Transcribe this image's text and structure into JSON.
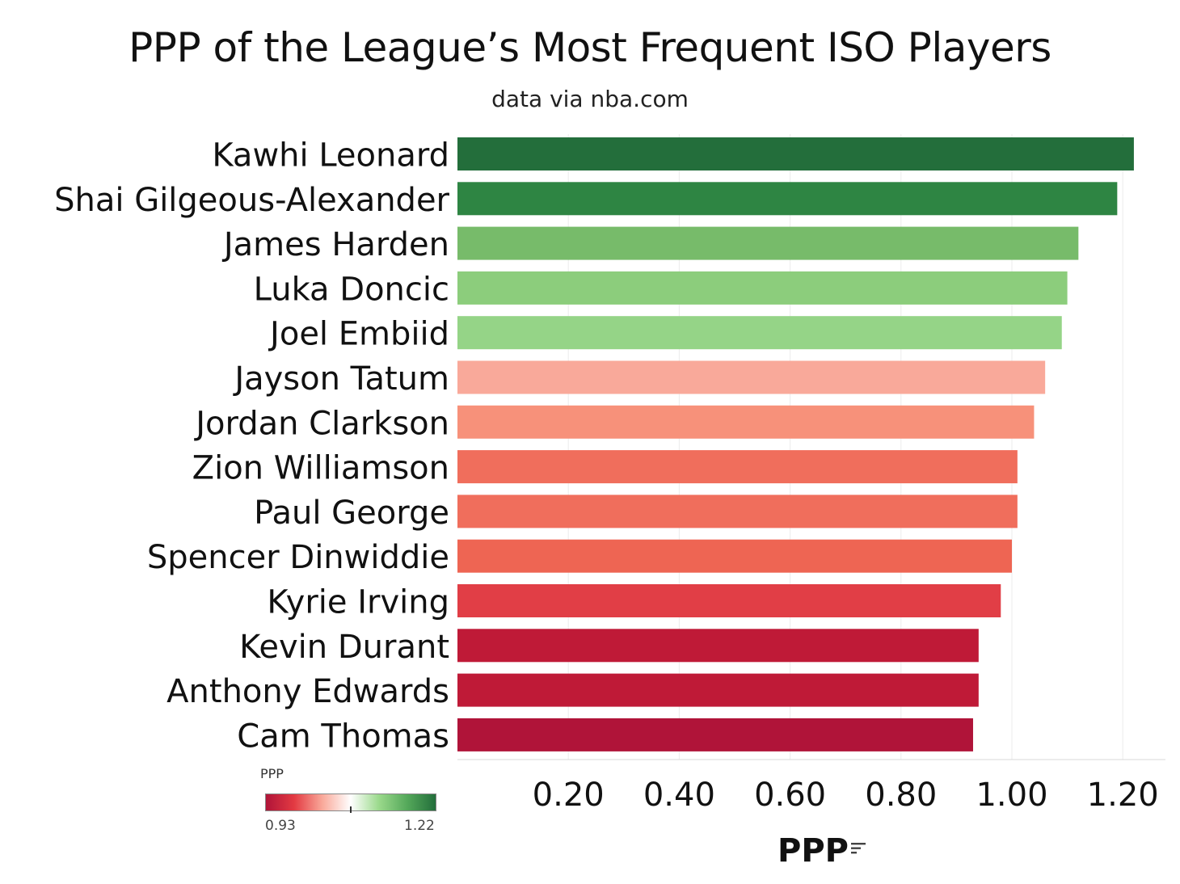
{
  "chart_data": {
    "type": "bar",
    "orientation": "horizontal",
    "title": "PPP of the League’s Most Frequent ISO Players",
    "subtitle": "data via nba.com",
    "xlabel": "PPP",
    "ylabel": "",
    "xlim": [
      0,
      1.27
    ],
    "x_ticks": [
      "0.20",
      "0.40",
      "0.60",
      "0.80",
      "1.00",
      "1.20"
    ],
    "x_tick_values": [
      0.2,
      0.4,
      0.6,
      0.8,
      1.0,
      1.2
    ],
    "grid": true,
    "categories": [
      "Kawhi Leonard",
      "Shai Gilgeous-Alexander",
      "James Harden",
      "Luka Doncic",
      "Joel Embiid",
      "Jayson Tatum",
      "Jordan Clarkson",
      "Zion Williamson",
      "Paul George",
      "Spencer Dinwiddie",
      "Kyrie Irving",
      "Kevin Durant",
      "Anthony Edwards",
      "Cam Thomas"
    ],
    "values": [
      1.22,
      1.19,
      1.12,
      1.1,
      1.09,
      1.06,
      1.04,
      1.01,
      1.01,
      1.0,
      0.98,
      0.94,
      0.94,
      0.93
    ],
    "bar_colors": [
      "#236e3b",
      "#2e8543",
      "#77bb6a",
      "#8ccd7c",
      "#95d487",
      "#f9a99a",
      "#f7917a",
      "#f06e5c",
      "#f06e5c",
      "#ee6553",
      "#e13e46",
      "#bf1a37",
      "#bf1a37",
      "#b01439"
    ],
    "legend": {
      "title": "PPP",
      "min_label": "0.93",
      "max_label": "1.22",
      "placement": "bottom-left",
      "gradient_colors": [
        "#b01439",
        "#e33a42",
        "#f9a99a",
        "#ffffff",
        "#9ad98b",
        "#54a85a",
        "#236e3b"
      ]
    }
  },
  "icons": {
    "sort": "sort-descending-icon"
  }
}
